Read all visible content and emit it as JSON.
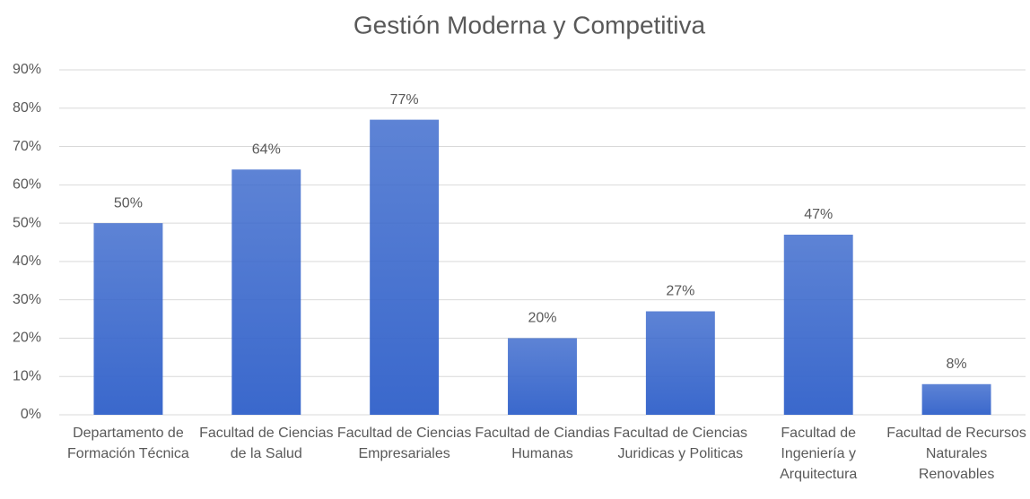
{
  "chart_data": {
    "type": "bar",
    "title": "Gestión Moderna y Competitiva",
    "categories": [
      "Departamento de Formación Técnica",
      "Facultad de Ciencias de la Salud",
      "Facultad de Ciencias Empresariales",
      "Facultad de Ciandias Humanas",
      "Facultad de Ciencias Juridicas y Politicas",
      "Facultad de Ingeniería y Arquitectura",
      "Facultad de Recursos Naturales Renovables"
    ],
    "values": [
      50,
      64,
      77,
      20,
      27,
      47,
      8
    ],
    "value_labels": [
      "50%",
      "64%",
      "77%",
      "20%",
      "27%",
      "47%",
      "8%"
    ],
    "color": "#3a68cc",
    "ylim": [
      0,
      90
    ],
    "yticks": [
      {
        "value": 0,
        "label": "0%"
      },
      {
        "value": 10,
        "label": "10%"
      },
      {
        "value": 20,
        "label": "20%"
      },
      {
        "value": 30,
        "label": "30%"
      },
      {
        "value": 40,
        "label": "40%"
      },
      {
        "value": 50,
        "label": "50%"
      },
      {
        "value": 60,
        "label": "60%"
      },
      {
        "value": 70,
        "label": "70%"
      },
      {
        "value": 80,
        "label": "80%"
      },
      {
        "value": 90,
        "label": "90%"
      }
    ],
    "grid": true
  }
}
